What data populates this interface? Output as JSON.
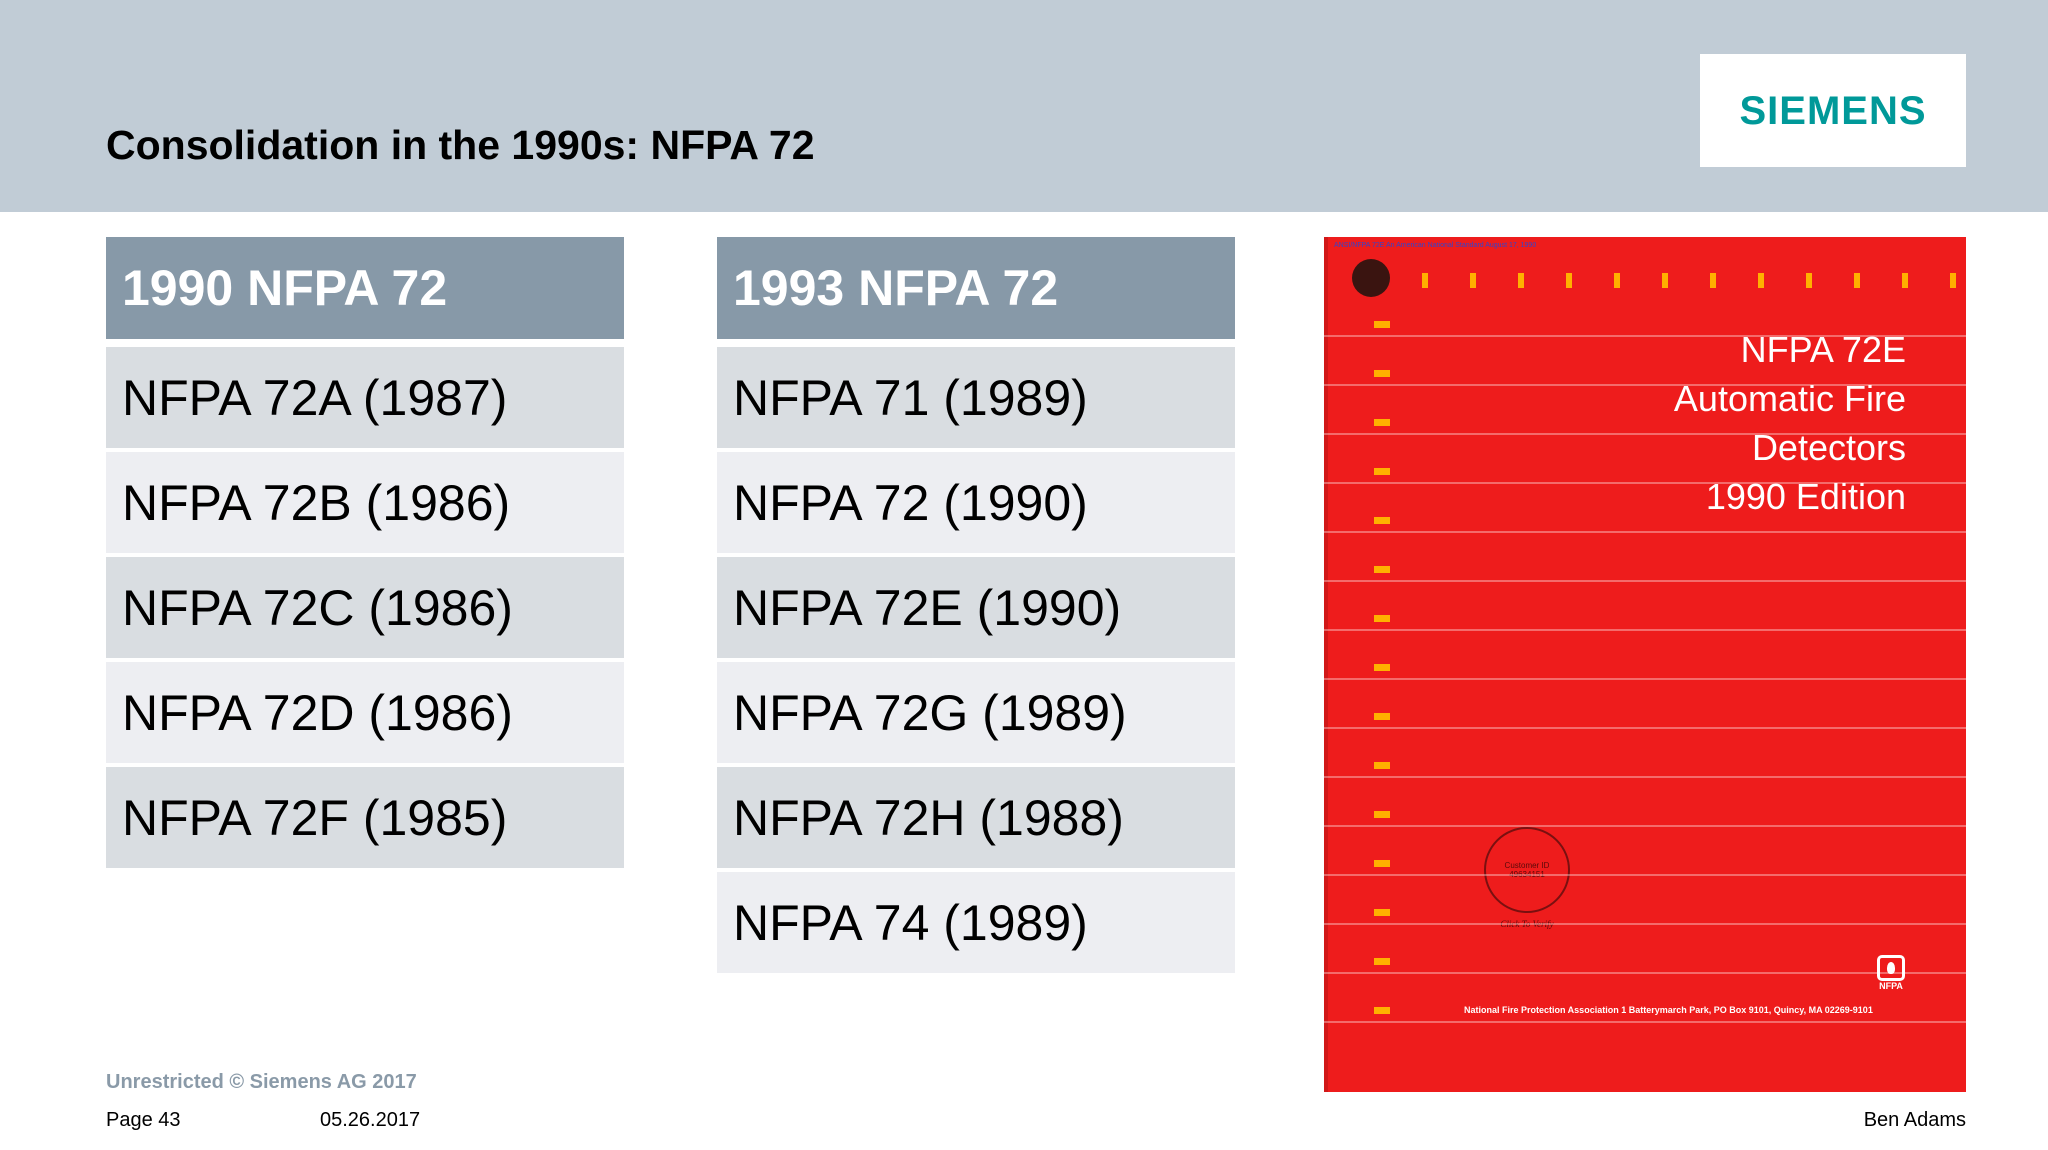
{
  "slide": {
    "title": "Consolidation in the 1990s: NFPA 72",
    "logo_text": "SIEMENS",
    "brand_color": "#009999",
    "header_band_color": "#c1ccd6"
  },
  "tables": [
    {
      "header": "1990 NFPA 72",
      "rows": [
        "NFPA 72A (1987)",
        "NFPA 72B (1986)",
        "NFPA 72C (1986)",
        "NFPA 72D (1986)",
        "NFPA 72F (1985)"
      ]
    },
    {
      "header": "1993 NFPA 72",
      "rows": [
        "NFPA 71 (1989)",
        "NFPA 72 (1990)",
        "NFPA 72E (1990)",
        "NFPA 72G (1989)",
        "NFPA 72H (1988)",
        "NFPA 74 (1989)"
      ]
    }
  ],
  "cover": {
    "title_lines": [
      "NFPA 72E",
      "Automatic Fire",
      "Detectors",
      "1990 Edition"
    ],
    "fine_print": "ANSI/NFPA 72E     An American National Standard     August 17, 1990",
    "stamp_line1": "Customer ID",
    "stamp_line2": "49634151",
    "stamp_curve": "Click To Verify",
    "logo_mark": "NFPA",
    "publisher_line": "National Fire Protection Association  1 Batterymarch Park, PO Box 9101, Quincy, MA 02269-9101",
    "color": "#ee1c1c"
  },
  "footer": {
    "classification": "Unrestricted © Siemens AG 2017",
    "page": "Page 43",
    "date": "05.26.2017",
    "author": "Ben Adams"
  }
}
